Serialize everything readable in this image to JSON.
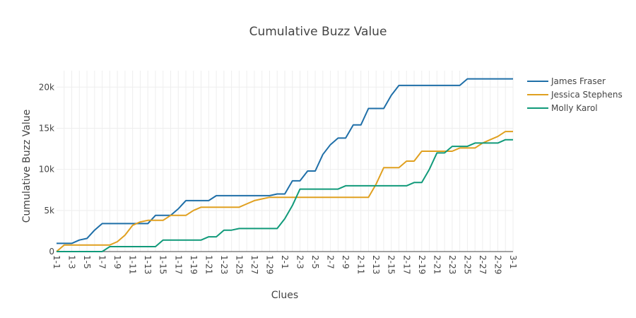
{
  "chart_data": {
    "type": "line",
    "title": "Cumulative Buzz Value",
    "xlabel": "Clues",
    "ylabel": "Cumulative Buzz Value",
    "ylim": [
      0,
      22000
    ],
    "grid": true,
    "legend_position": "top-right",
    "categories": [
      "1-1",
      "1-2",
      "1-3",
      "1-4",
      "1-5",
      "1-6",
      "1-7",
      "1-8",
      "1-9",
      "1-10",
      "1-11",
      "1-12",
      "1-13",
      "1-14",
      "1-15",
      "1-16",
      "1-17",
      "1-18",
      "1-19",
      "1-20",
      "1-21",
      "1-22",
      "1-23",
      "1-24",
      "1-25",
      "1-26",
      "1-27",
      "1-28",
      "1-29",
      "1-30",
      "2-1",
      "2-2",
      "2-3",
      "2-4",
      "2-5",
      "2-6",
      "2-7",
      "2-8",
      "2-9",
      "2-10",
      "2-11",
      "2-12",
      "2-13",
      "2-14",
      "2-15",
      "2-16",
      "2-17",
      "2-18",
      "2-19",
      "2-20",
      "2-21",
      "2-22",
      "2-23",
      "2-24",
      "2-25",
      "2-26",
      "2-27",
      "2-28",
      "2-29",
      "2-30",
      "3-1"
    ],
    "x_tick_labels": [
      "1-1",
      "1-3",
      "1-5",
      "1-7",
      "1-9",
      "1-11",
      "1-13",
      "1-15",
      "1-17",
      "1-19",
      "1-21",
      "1-23",
      "1-25",
      "1-27",
      "1-29",
      "2-1",
      "2-3",
      "2-5",
      "2-7",
      "2-9",
      "2-11",
      "2-13",
      "2-15",
      "2-17",
      "2-19",
      "2-21",
      "2-23",
      "2-25",
      "2-27",
      "2-29",
      "3-1"
    ],
    "y_ticks": [
      0,
      5000,
      10000,
      15000,
      20000
    ],
    "y_tick_labels": [
      "0",
      "5k",
      "10k",
      "15k",
      "20k"
    ],
    "series": [
      {
        "name": "James Fraser",
        "color": "#1f6fa8",
        "values": [
          1000,
          1000,
          1000,
          1400,
          1600,
          2600,
          3400,
          3400,
          3400,
          3400,
          3400,
          3400,
          3400,
          4400,
          4400,
          4400,
          5200,
          6200,
          6200,
          6200,
          6200,
          6800,
          6800,
          6800,
          6800,
          6800,
          6800,
          6800,
          6800,
          7000,
          7000,
          8600,
          8600,
          9800,
          9800,
          11800,
          13000,
          13800,
          13800,
          15400,
          15400,
          17400,
          17400,
          17400,
          19000,
          20200,
          20200,
          20200,
          20200,
          20200,
          20200,
          20200,
          20200,
          20200,
          21000,
          21000,
          21000,
          21000,
          21000,
          21000,
          21000
        ]
      },
      {
        "name": "Jessica Stephens",
        "color": "#e0a020",
        "values": [
          0,
          800,
          800,
          800,
          800,
          800,
          800,
          800,
          1200,
          2000,
          3200,
          3600,
          3800,
          3800,
          3800,
          4400,
          4400,
          4400,
          5000,
          5400,
          5400,
          5400,
          5400,
          5400,
          5400,
          5800,
          6200,
          6400,
          6600,
          6600,
          6600,
          6600,
          6600,
          6600,
          6600,
          6600,
          6600,
          6600,
          6600,
          6600,
          6600,
          6600,
          8200,
          10200,
          10200,
          10200,
          11000,
          11000,
          12200,
          12200,
          12200,
          12200,
          12200,
          12600,
          12600,
          12600,
          13200,
          13600,
          14000,
          14600,
          14600
        ]
      },
      {
        "name": "Molly Karol",
        "color": "#119a7a",
        "values": [
          0,
          0,
          0,
          0,
          0,
          0,
          0,
          600,
          600,
          600,
          600,
          600,
          600,
          600,
          1400,
          1400,
          1400,
          1400,
          1400,
          1400,
          1800,
          1800,
          2600,
          2600,
          2800,
          2800,
          2800,
          2800,
          2800,
          2800,
          4000,
          5600,
          7600,
          7600,
          7600,
          7600,
          7600,
          7600,
          8000,
          8000,
          8000,
          8000,
          8000,
          8000,
          8000,
          8000,
          8000,
          8400,
          8400,
          10000,
          12000,
          12000,
          12800,
          12800,
          12800,
          13200,
          13200,
          13200,
          13200,
          13600,
          13600
        ]
      }
    ]
  }
}
